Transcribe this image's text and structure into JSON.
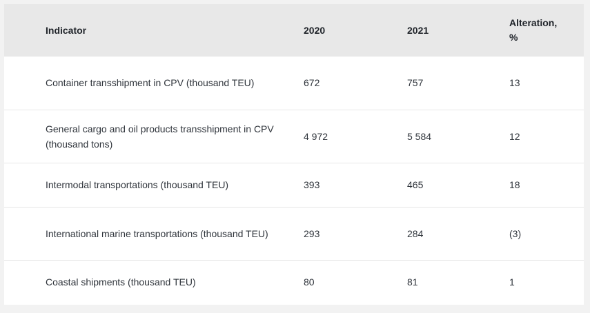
{
  "table": {
    "headers": {
      "indicator": "Indicator",
      "year1": "2020",
      "year2": "2021",
      "alteration": "Alteration, %"
    },
    "rows": [
      {
        "indicator": "Container transshipment in CPV (thousand TEU)",
        "y2020": "672",
        "y2021": "757",
        "alteration": "13"
      },
      {
        "indicator": "General cargo and oil products transshipment in CPV (thousand tons)",
        "y2020": "4 972",
        "y2021": "5 584",
        "alteration": "12"
      },
      {
        "indicator": "Intermodal transportations (thousand TEU)",
        "y2020": "393",
        "y2021": "465",
        "alteration": "18"
      },
      {
        "indicator": "International marine transportations (thousand TEU)",
        "y2020": "293",
        "y2021": "284",
        "alteration": "(3)"
      },
      {
        "indicator": "Coastal shipments (thousand TEU)",
        "y2020": "80",
        "y2021": "81",
        "alteration": "1"
      }
    ]
  }
}
